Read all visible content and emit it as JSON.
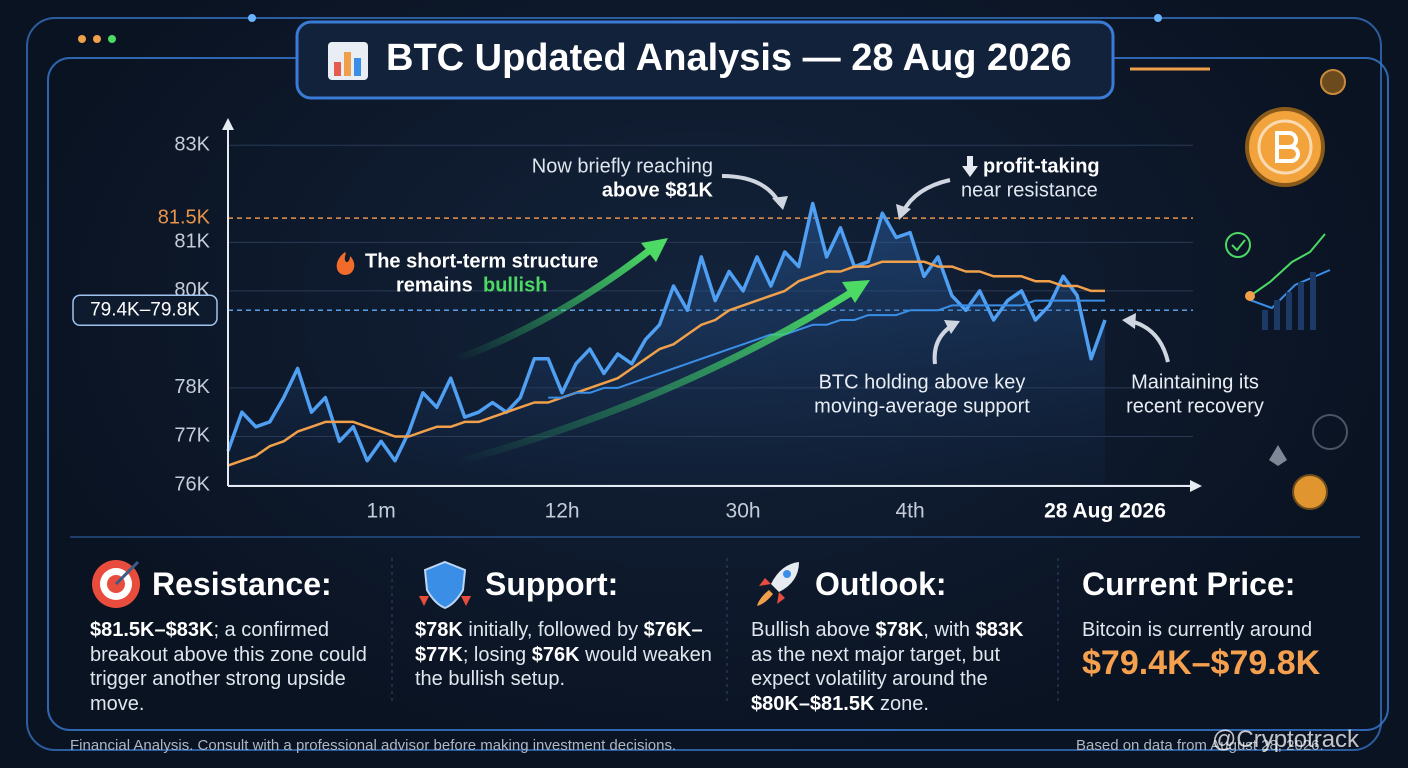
{
  "header": {
    "title": "BTC Updated Analysis — 28 Aug 2026"
  },
  "chart_data": {
    "type": "line",
    "categories": [
      null,
      null,
      null,
      null,
      null,
      null,
      null,
      null,
      null,
      null,
      null,
      "1m",
      null,
      null,
      null,
      null,
      null,
      null,
      null,
      null,
      null,
      null,
      null,
      null,
      "12h",
      null,
      null,
      null,
      null,
      null,
      null,
      null,
      null,
      null,
      null,
      null,
      null,
      "30h",
      null,
      null,
      null,
      null,
      null,
      null,
      null,
      null,
      null,
      null,
      null,
      "4th",
      null,
      null,
      null,
      null,
      null,
      null,
      null,
      null,
      null,
      null,
      null,
      null,
      null,
      "28 Aug 2026"
    ],
    "series": [
      {
        "color": "#4f9ff2",
        "values": [
          76700,
          77500,
          77200,
          77300,
          77800,
          78400,
          77500,
          77800,
          76900,
          77200,
          76500,
          76900,
          76500,
          77100,
          77900,
          77600,
          78200,
          77400,
          77500,
          77700,
          77500,
          77800,
          78600,
          78600,
          77900,
          78500,
          78800,
          78300,
          78700,
          78500,
          79000,
          79300,
          80100,
          79600,
          80700,
          79800,
          80400,
          80000,
          80700,
          80100,
          80800,
          80500,
          81800,
          80700,
          81300,
          80500,
          80600,
          81600,
          81100,
          81200,
          80300,
          80700,
          79900,
          79600,
          80000,
          79400,
          79800,
          80000,
          79400,
          79700,
          80300,
          79900,
          78600,
          79400
        ]
      },
      {
        "color": "#f0a04b",
        "values": [
          76400,
          76500,
          76600,
          76800,
          76900,
          77100,
          77200,
          77300,
          77300,
          77300,
          77200,
          77100,
          77000,
          77000,
          77100,
          77200,
          77200,
          77300,
          77300,
          77400,
          77500,
          77600,
          77700,
          77700,
          77800,
          77900,
          78000,
          78100,
          78200,
          78400,
          78600,
          78800,
          78900,
          79100,
          79300,
          79400,
          79600,
          79700,
          79800,
          79900,
          80000,
          80200,
          80300,
          80400,
          80400,
          80500,
          80500,
          80600,
          80600,
          80600,
          80600,
          80500,
          80500,
          80400,
          80400,
          80300,
          80300,
          80300,
          80200,
          80200,
          80100,
          80100,
          80000,
          80000
        ]
      },
      {
        "color": "#3b8ee6",
        "values": [
          null,
          null,
          null,
          null,
          null,
          null,
          null,
          null,
          null,
          null,
          null,
          null,
          null,
          null,
          null,
          null,
          null,
          null,
          null,
          null,
          null,
          null,
          null,
          77800,
          77800,
          77900,
          77900,
          78000,
          78000,
          78100,
          78200,
          78300,
          78400,
          78500,
          78600,
          78700,
          78800,
          78900,
          79000,
          79100,
          79100,
          79200,
          79300,
          79300,
          79400,
          79400,
          79500,
          79500,
          79500,
          79600,
          79600,
          79600,
          79700,
          79700,
          79700,
          79700,
          79700,
          79700,
          79800,
          79800,
          79800,
          79800,
          79800,
          79800
        ]
      }
    ],
    "ylim": [
      76000,
      83500
    ],
    "yticks": [
      {
        "value": 76000,
        "label": "76K"
      },
      {
        "value": 77000,
        "label": "77K"
      },
      {
        "value": 78000,
        "label": "78K"
      },
      {
        "value": 80000,
        "label": "80K"
      },
      {
        "value": 81000,
        "label": "81K"
      },
      {
        "value": 83000,
        "label": "83K"
      }
    ],
    "grid": true,
    "reference_lines": [
      {
        "value": 81500,
        "label": "81.5K",
        "color": "#e8944a"
      },
      {
        "low": 79400,
        "high": 79800,
        "label": "79.4K–79.8K",
        "color": "#5aa0e8"
      }
    ],
    "annotations": [
      {
        "lines": [
          "Now briefly reaching",
          "above $81K"
        ]
      },
      {
        "lines": [
          "profit-taking",
          "near resistance"
        ]
      },
      {
        "lines": [
          "The short-term structure",
          "remains"
        ],
        "highlight": "bullish",
        "highlight_color": "#4cd964"
      },
      {
        "lines": [
          "BTC holding above key",
          "moving-average support"
        ]
      },
      {
        "lines": [
          "Maintaining its",
          "recent recovery"
        ]
      }
    ]
  },
  "panels": [
    {
      "heading": "Resistance:",
      "body": [
        {
          "text": "$81.5K–$83K",
          "bold": true
        },
        {
          "text": "; a confirmed breakout above this zone could trigger another strong upside move.",
          "bold": false
        }
      ]
    },
    {
      "heading": "Support:",
      "body": [
        {
          "text": "$78K",
          "bold": true
        },
        {
          "text": " initially, followed by ",
          "bold": false
        },
        {
          "text": "$76K–$77K",
          "bold": true
        },
        {
          "text": "; losing ",
          "bold": false
        },
        {
          "text": "$76K",
          "bold": true
        },
        {
          "text": " would weaken the bullish setup.",
          "bold": false
        }
      ]
    },
    {
      "heading": "Outlook:",
      "body": [
        {
          "text": "Bullish above ",
          "bold": false
        },
        {
          "text": "$78K",
          "bold": true
        },
        {
          "text": ", with ",
          "bold": false
        },
        {
          "text": "$83K",
          "bold": true
        },
        {
          "text": " as the next major target, but expect volatility around the ",
          "bold": false
        },
        {
          "text": "$80K–$81.5K",
          "bold": true
        },
        {
          "text": " zone.",
          "bold": false
        }
      ]
    },
    {
      "heading": "Current Price:",
      "body": [
        {
          "text": "Bitcoin is currently around",
          "bold": false
        }
      ],
      "price": "$79.4K–$79.8K",
      "price_color": "#f5a04e"
    }
  ],
  "footer": {
    "left": "Financial Analysis. Consult with a professional advisor before making investment decisions.",
    "right": "Based on data from August 28, 2026.",
    "watermark": "@Cryptotrack"
  }
}
